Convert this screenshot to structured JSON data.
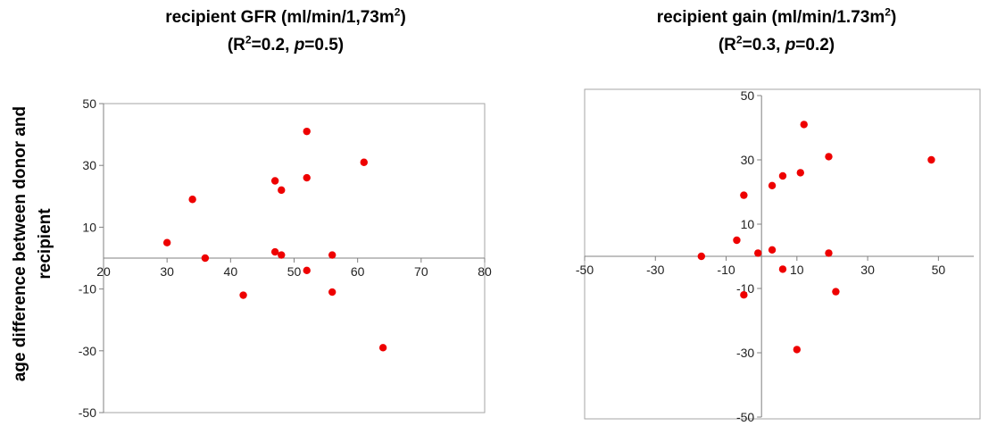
{
  "chart_data": [
    {
      "type": "scatter",
      "title_line1": "recipient GFR (ml/min/1,73m",
      "title_sup": "2",
      "title_line1_end": ")",
      "title_line2_pre": "(R",
      "title_line2_sup": "2",
      "title_line2_mid": "=0.2, ",
      "title_line2_p": "p",
      "title_line2_end": "=0.5)",
      "ylabel": "age difference between donor and recipient",
      "xlim": [
        20,
        80
      ],
      "ylim": [
        -50,
        50
      ],
      "xticks": [
        "20",
        "30",
        "40",
        "50",
        "60",
        "70",
        "80"
      ],
      "yticks": [
        "50",
        "30",
        "10",
        "-10",
        "-30",
        "-50"
      ],
      "point_color": "#ee0000",
      "points": [
        {
          "x": 30,
          "y": 5
        },
        {
          "x": 34,
          "y": 19
        },
        {
          "x": 36,
          "y": 0
        },
        {
          "x": 42,
          "y": -12
        },
        {
          "x": 47,
          "y": 25
        },
        {
          "x": 47,
          "y": 2
        },
        {
          "x": 48,
          "y": 22
        },
        {
          "x": 48,
          "y": 1
        },
        {
          "x": 52,
          "y": 41
        },
        {
          "x": 52,
          "y": 26
        },
        {
          "x": 52,
          "y": -4
        },
        {
          "x": 56,
          "y": 1
        },
        {
          "x": 56,
          "y": -11
        },
        {
          "x": 61,
          "y": 31
        },
        {
          "x": 64,
          "y": -29
        }
      ]
    },
    {
      "type": "scatter",
      "title_line1": "recipient gain (ml/min/1.73m",
      "title_sup": "2",
      "title_line1_end": ")",
      "title_line2_pre": "(R",
      "title_line2_sup": "2",
      "title_line2_mid": "=0.3, ",
      "title_line2_p": "p",
      "title_line2_end": "=0.2)",
      "xlim": [
        -50,
        60
      ],
      "ylim": [
        -50,
        50
      ],
      "xticks": [
        "-50",
        "-30",
        "-10",
        "10",
        "30",
        "50"
      ],
      "yticks": [
        "50",
        "30",
        "10",
        "-10",
        "-30",
        "-50"
      ],
      "point_color": "#ee0000",
      "points": [
        {
          "x": -17,
          "y": 0
        },
        {
          "x": -7,
          "y": 5
        },
        {
          "x": -5,
          "y": 19
        },
        {
          "x": -5,
          "y": -12
        },
        {
          "x": -1,
          "y": 1
        },
        {
          "x": 3,
          "y": 22
        },
        {
          "x": 3,
          "y": 2
        },
        {
          "x": 6,
          "y": 25
        },
        {
          "x": 6,
          "y": -4
        },
        {
          "x": 10,
          "y": -29
        },
        {
          "x": 11,
          "y": 26
        },
        {
          "x": 12,
          "y": 41
        },
        {
          "x": 19,
          "y": 31
        },
        {
          "x": 19,
          "y": 1
        },
        {
          "x": 21,
          "y": -11
        },
        {
          "x": 48,
          "y": 30
        }
      ]
    }
  ]
}
